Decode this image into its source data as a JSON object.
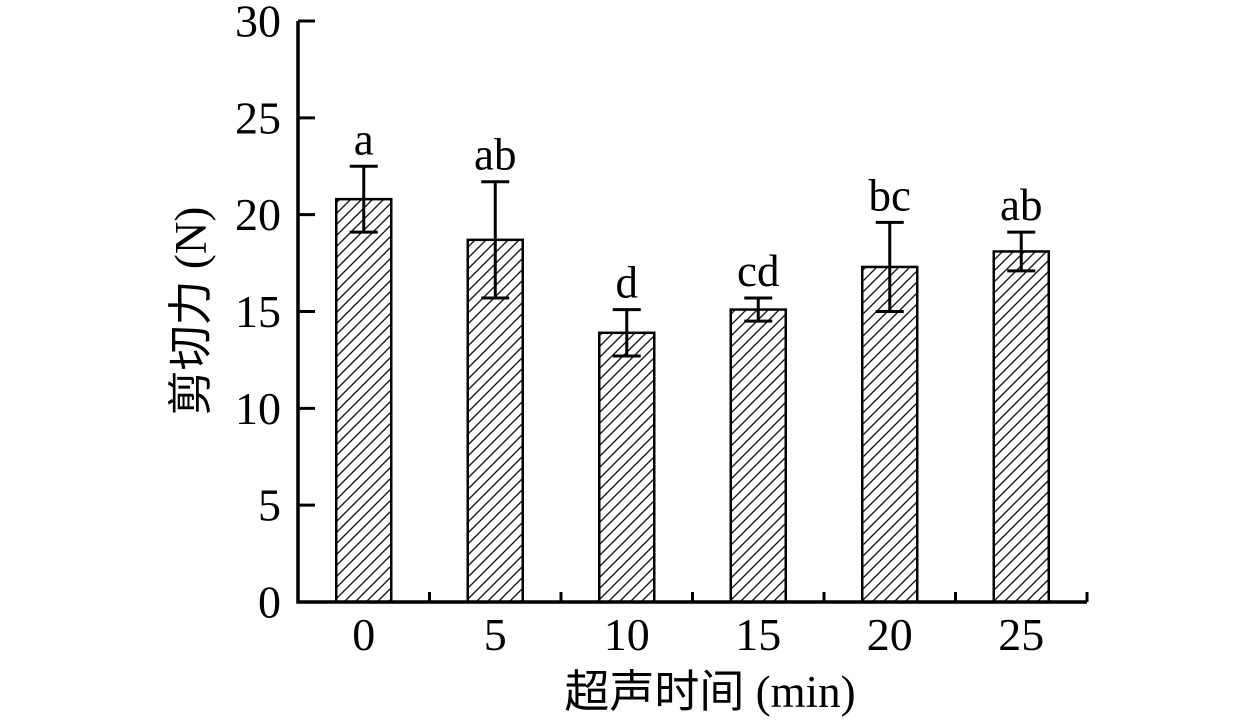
{
  "figure": {
    "background": "#ffffff",
    "ink_color": "#000000",
    "hatch_color": "#1a1a1a"
  },
  "chart_data": {
    "type": "bar",
    "title": "",
    "xlabel": "超声时间 (min)",
    "ylabel": "剪切力 (N)",
    "categories": [
      "0",
      "5",
      "10",
      "15",
      "20",
      "25"
    ],
    "values": [
      20.8,
      18.7,
      13.9,
      15.1,
      17.3,
      18.1
    ],
    "error_bars": [
      1.7,
      3.0,
      1.2,
      0.6,
      2.3,
      1.0
    ],
    "significance_labels": [
      "a",
      "ab",
      "d",
      "cd",
      "bc",
      "ab"
    ],
    "ylim": [
      0,
      30
    ],
    "yticks": [
      0,
      5,
      10,
      15,
      20,
      25,
      30
    ],
    "grid": false,
    "legend": null,
    "bar_style": {
      "fill": "#ffffff",
      "hatch": "diagonal-forward",
      "stroke": "#000000"
    }
  }
}
